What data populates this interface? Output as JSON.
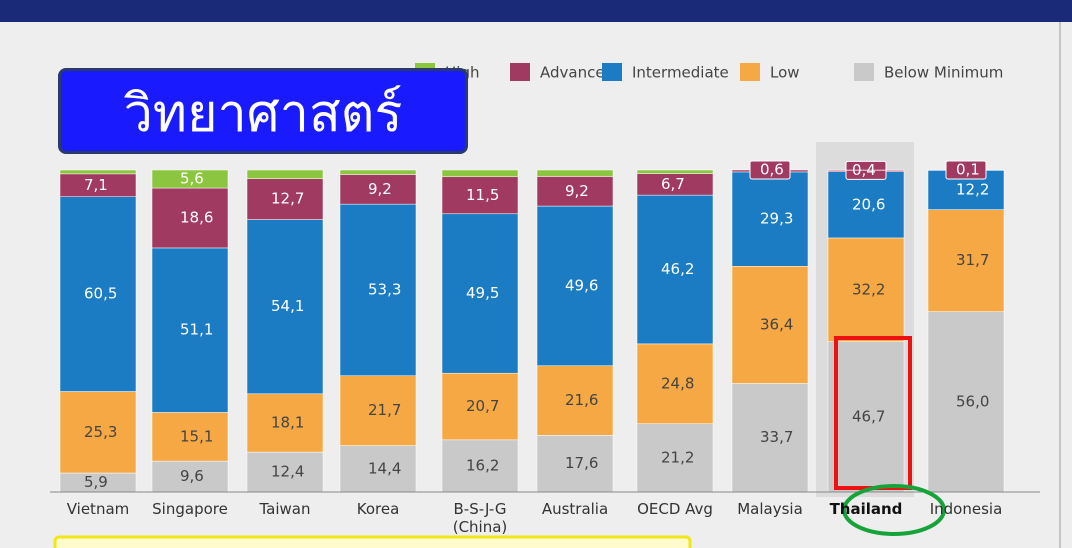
{
  "chart_data": {
    "type": "stacked_bar",
    "overlay_title": "วิทยาศาสตร์",
    "categories": [
      "Vietnam",
      "Singapore",
      "Taiwan",
      "Korea",
      "B-S-J-G (China)",
      "Australia",
      "OECD Avg",
      "Malaysia",
      "Thailand",
      "Indonesia"
    ],
    "ylim": [
      0,
      100
    ],
    "series": [
      {
        "name": "High",
        "color": "#8cc540",
        "values": [
          1.2,
          5.6,
          2.7,
          1.4,
          2.1,
          2.0,
          1.1,
          0,
          0.1,
          0
        ],
        "value_labels": [
          null,
          "5,6",
          null,
          null,
          null,
          null,
          null,
          null,
          null,
          null
        ]
      },
      {
        "name": "Advanced",
        "color": "#a13a61",
        "values": [
          7.1,
          18.6,
          12.7,
          9.2,
          11.5,
          9.2,
          6.7,
          0.6,
          0.4,
          0.1
        ],
        "value_labels": [
          "7,1",
          "18,6",
          "12,7",
          "9,2",
          "11,5",
          "9,2",
          "6,7",
          "0,6",
          "0,4",
          "0,1"
        ]
      },
      {
        "name": "Intermediate",
        "color": "#1b7cc4",
        "values": [
          60.5,
          51.1,
          54.1,
          53.3,
          49.5,
          49.6,
          46.2,
          29.3,
          20.6,
          12.2
        ],
        "value_labels": [
          "60,5",
          "51,1",
          "54,1",
          "53,3",
          "49,5",
          "49,6",
          "46,2",
          "29,3",
          "20,6",
          "12,2"
        ]
      },
      {
        "name": "Low",
        "color": "#f5a843",
        "values": [
          25.3,
          15.1,
          18.1,
          21.7,
          20.7,
          21.6,
          24.8,
          36.4,
          32.2,
          31.7
        ],
        "value_labels": [
          "25,3",
          "15,1",
          "18,1",
          "21,7",
          "20,7",
          "21,6",
          "24,8",
          "36,4",
          "32,2",
          "31,7"
        ]
      },
      {
        "name": "Below Minimum",
        "color": "#c9c9c9",
        "values": [
          5.9,
          9.6,
          12.4,
          14.4,
          16.2,
          17.6,
          21.2,
          33.7,
          46.7,
          56.0
        ],
        "value_labels": [
          "5,9",
          "9,6",
          "12,4",
          "14,4",
          "16,2",
          "17,6",
          "21,2",
          "33,7",
          "46,7",
          "56,0"
        ]
      }
    ]
  }
}
